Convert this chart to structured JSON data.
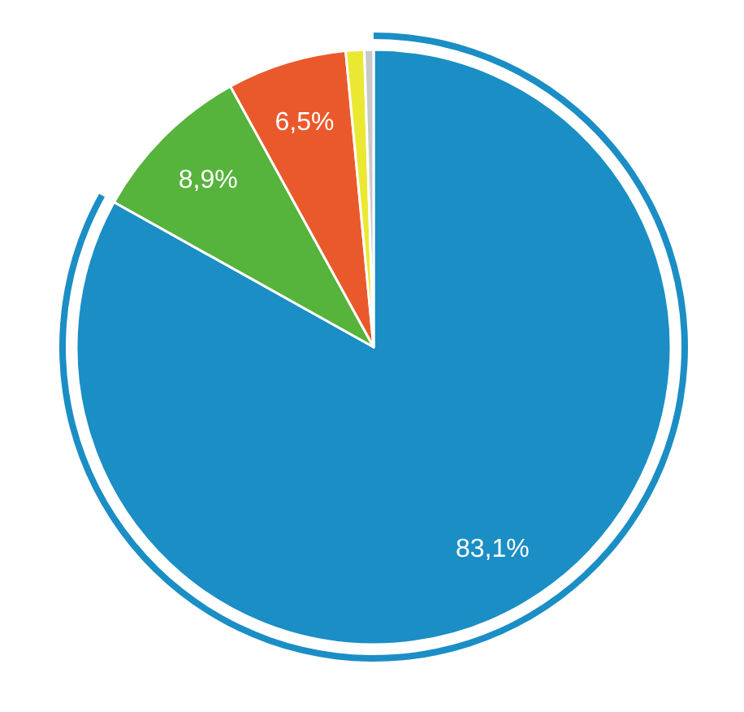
{
  "chart_data": {
    "type": "pie",
    "categories": [
      null,
      null,
      null,
      null,
      null
    ],
    "values": [
      83.1,
      8.9,
      6.5,
      1.0,
      0.5
    ],
    "colors": [
      "#1b8ec5",
      "#56b33c",
      "#ea592b",
      "#ebe834",
      "#c9c9c9"
    ],
    "value_labels": [
      "83,1%",
      "8,9%",
      "6,5%",
      null,
      null
    ]
  }
}
